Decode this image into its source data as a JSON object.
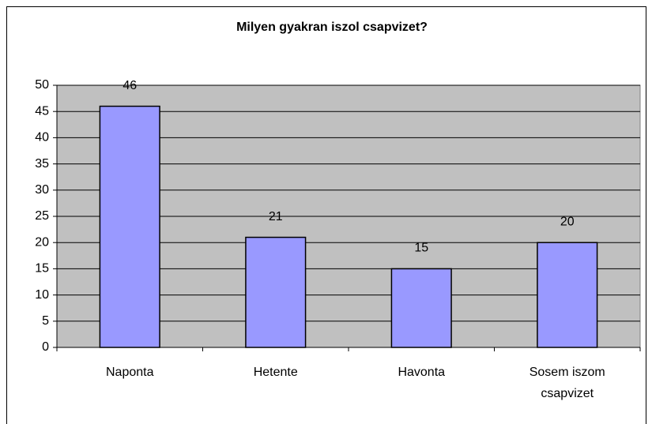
{
  "chart_data": {
    "type": "bar",
    "title": "Milyen gyakran iszol csapvizet?",
    "categories": [
      "Naponta",
      "Hetente",
      "Havonta",
      "Sosem iszom csapvizet"
    ],
    "values": [
      46,
      21,
      15,
      20
    ],
    "color": "#9999ff",
    "ylim": [
      0,
      50
    ],
    "yticks": [
      0,
      5,
      10,
      15,
      20,
      25,
      30,
      35,
      40,
      45,
      50
    ],
    "grid": true
  }
}
